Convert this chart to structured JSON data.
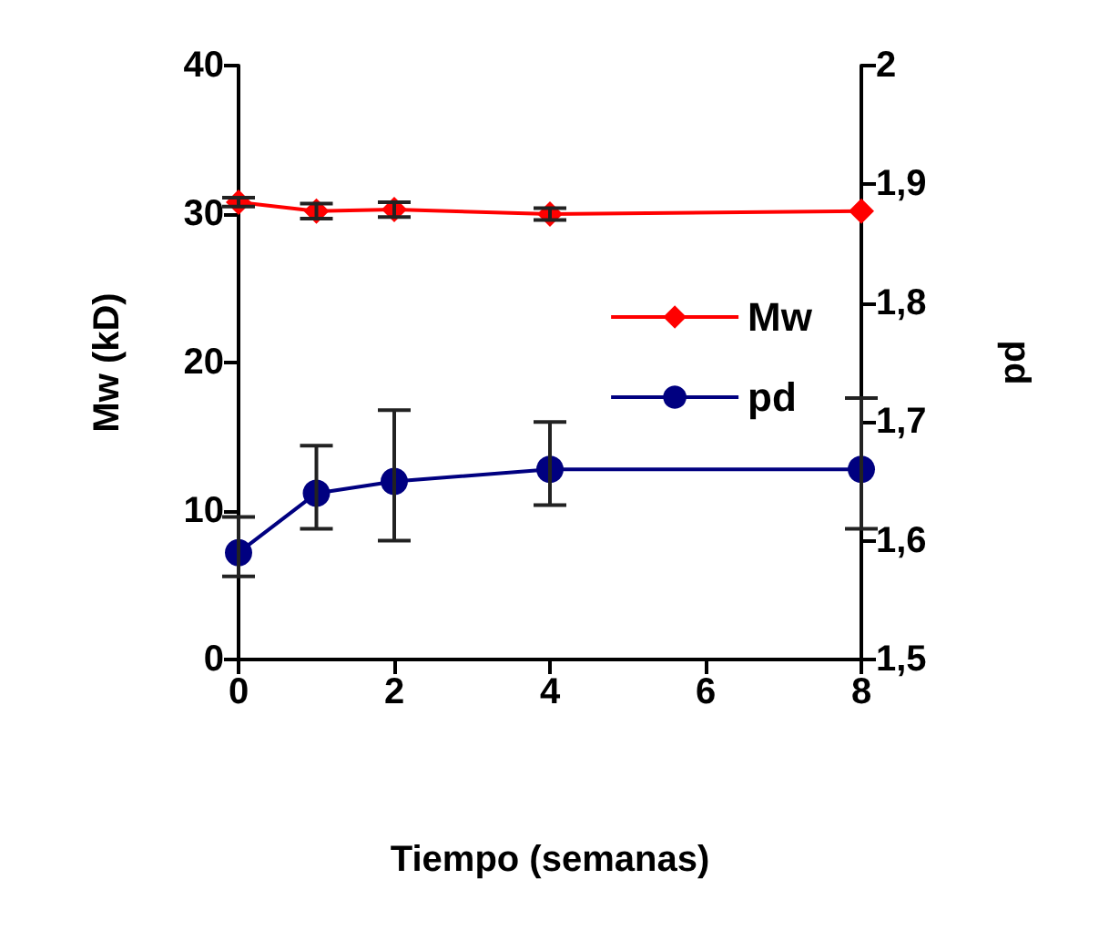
{
  "chart_data": {
    "type": "line",
    "xlabel": "Tiempo (semanas)",
    "ylabel": "Mw (kD)",
    "y2label": "pd",
    "x": [
      0,
      1,
      2,
      4,
      8
    ],
    "xlim": [
      0,
      8
    ],
    "xticks": [
      0,
      2,
      4,
      6,
      8
    ],
    "ylim": [
      0,
      40
    ],
    "yticks": [
      0,
      10,
      20,
      30,
      40
    ],
    "y2lim": [
      1.5,
      2
    ],
    "y2ticks": [
      {
        "value": 1.5,
        "label": "1,5"
      },
      {
        "value": 1.6,
        "label": "1,6"
      },
      {
        "value": 1.7,
        "label": "1,7"
      },
      {
        "value": 1.8,
        "label": "1,8"
      },
      {
        "value": 1.9,
        "label": "1,9"
      },
      {
        "value": 2,
        "label": "2"
      }
    ],
    "legend": "right",
    "grid": false,
    "series": [
      {
        "name": "Mw",
        "color": "#ff0000",
        "marker": "diamond",
        "values": [
          30.8,
          30.2,
          30.3,
          30.0,
          30.2
        ],
        "errors": [
          0.3,
          0.5,
          0.5,
          0.4,
          null
        ]
      },
      {
        "name": "pd",
        "color": "#000080",
        "marker": "circle",
        "axis": "y2",
        "values": [
          1.59,
          1.64,
          1.65,
          1.66,
          1.66
        ],
        "errors": [
          [
            1.57,
            1.62
          ],
          [
            1.61,
            1.68
          ],
          [
            1.6,
            1.71
          ],
          [
            1.63,
            1.7
          ],
          [
            1.61,
            1.72
          ]
        ]
      }
    ]
  }
}
